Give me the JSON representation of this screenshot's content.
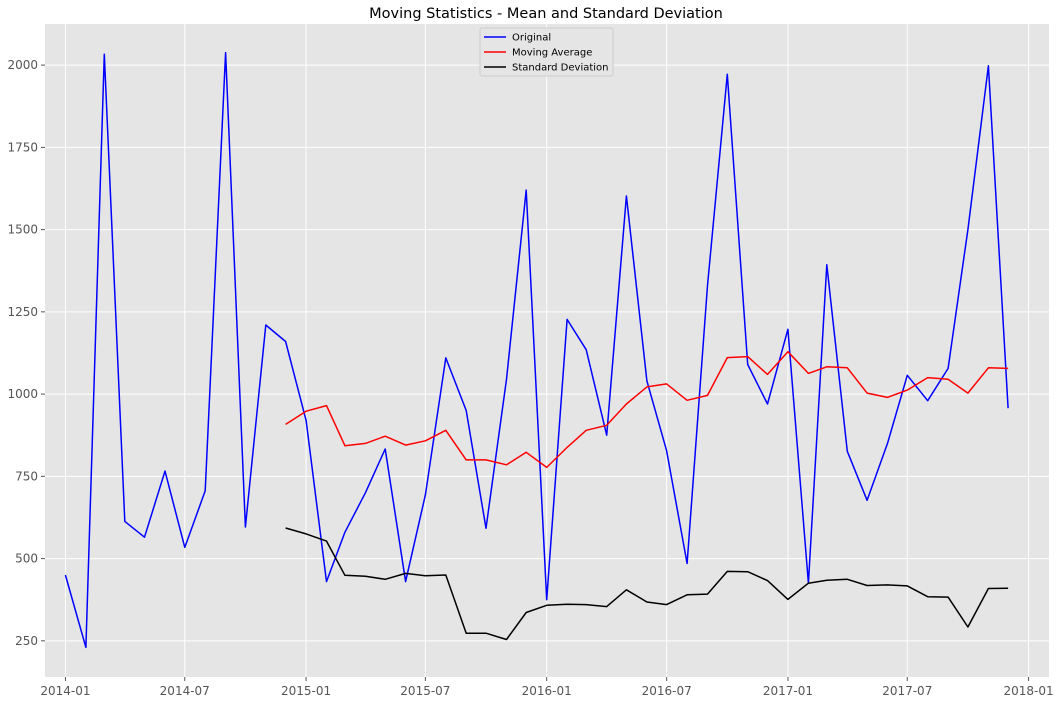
{
  "chart_data": {
    "type": "line",
    "title": "Moving Statistics - Mean and Standard Deviation",
    "xlabel": "",
    "ylabel": "",
    "x_ticks": [
      "2014-01",
      "2014-07",
      "2015-01",
      "2015-07",
      "2016-01",
      "2016-07",
      "2017-01",
      "2017-07",
      "2018-01"
    ],
    "y_ticks": [
      250,
      500,
      750,
      1000,
      1250,
      1500,
      1750,
      2000
    ],
    "xlim": [
      "2013-12-01",
      "2018-02-01"
    ],
    "ylim": [
      140,
      2125
    ],
    "grid": true,
    "legend_position": "top-center",
    "background": "#e5e5e5",
    "x": [
      "2014-01-01",
      "2014-02-01",
      "2014-03-01",
      "2014-04-01",
      "2014-05-01",
      "2014-06-01",
      "2014-07-01",
      "2014-08-01",
      "2014-09-01",
      "2014-10-01",
      "2014-11-01",
      "2014-12-01",
      "2015-01-01",
      "2015-02-01",
      "2015-03-01",
      "2015-04-01",
      "2015-05-01",
      "2015-06-01",
      "2015-07-01",
      "2015-08-01",
      "2015-09-01",
      "2015-10-01",
      "2015-11-01",
      "2015-12-01",
      "2016-01-01",
      "2016-02-01",
      "2016-03-01",
      "2016-04-01",
      "2016-05-01",
      "2016-06-01",
      "2016-07-01",
      "2016-08-01",
      "2016-09-01",
      "2016-10-01",
      "2016-11-01",
      "2016-12-01",
      "2017-01-01",
      "2017-02-01",
      "2017-03-01",
      "2017-04-01",
      "2017-05-01",
      "2017-06-01",
      "2017-07-01",
      "2017-08-01",
      "2017-09-01",
      "2017-10-01",
      "2017-11-01",
      "2017-12-01"
    ],
    "series": [
      {
        "name": "Original",
        "color": "#0000ff",
        "values": [
          450,
          230,
          2033,
          613,
          565,
          766,
          534,
          706,
          2038,
          596,
          1210,
          1160,
          920,
          430,
          580,
          700,
          833,
          430,
          694,
          1110,
          950,
          592,
          1045,
          1620,
          375,
          1227,
          1135,
          875,
          1602,
          1040,
          828,
          485,
          1330,
          1972,
          1090,
          970,
          1197,
          425,
          1393,
          826,
          677,
          850,
          1057,
          980,
          1078,
          1500,
          1998,
          957
        ]
      },
      {
        "name": "Moving Average",
        "color": "#ff0000",
        "values": [
          null,
          null,
          null,
          null,
          null,
          null,
          null,
          null,
          null,
          null,
          null,
          908,
          948,
          965,
          843,
          850,
          872,
          845,
          858,
          890,
          800,
          800,
          785,
          823,
          777,
          838,
          890,
          905,
          970,
          1022,
          1031,
          981,
          996,
          1111,
          1114,
          1060,
          1129,
          1063,
          1083,
          1080,
          1003,
          990,
          1012,
          1050,
          1045,
          1003,
          1080,
          1078
        ]
      },
      {
        "name": "Standard Deviation",
        "color": "#000000",
        "values": [
          null,
          null,
          null,
          null,
          null,
          null,
          null,
          null,
          null,
          null,
          null,
          593,
          575,
          553,
          449,
          446,
          437,
          455,
          448,
          450,
          273,
          273,
          254,
          336,
          358,
          361,
          360,
          354,
          405,
          368,
          360,
          390,
          392,
          461,
          460,
          433,
          376,
          425,
          434,
          437,
          418,
          420,
          417,
          384,
          383,
          292,
          409,
          410
        ]
      }
    ]
  }
}
